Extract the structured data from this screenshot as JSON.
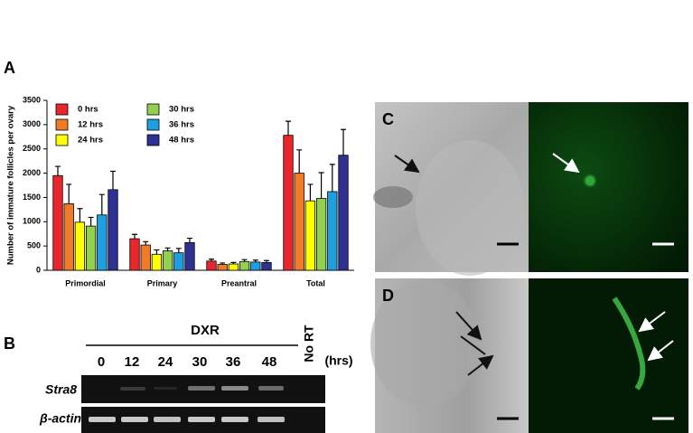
{
  "chart_data": {
    "type": "bar",
    "y_label": "Number of immature follicles per ovary",
    "categories": [
      "Primordial",
      "Primary",
      "Preantral",
      "Total"
    ],
    "series": [
      {
        "name": "0 hrs",
        "color": "#e8262b",
        "values": [
          1950,
          650,
          190,
          2780
        ],
        "errors": [
          190,
          90,
          40,
          290
        ]
      },
      {
        "name": "12 hrs",
        "color": "#f07a28",
        "values": [
          1370,
          520,
          120,
          2000
        ],
        "errors": [
          400,
          70,
          30,
          480
        ]
      },
      {
        "name": "24 hrs",
        "color": "#ffff00",
        "values": [
          990,
          330,
          130,
          1430
        ],
        "errors": [
          280,
          90,
          30,
          340
        ]
      },
      {
        "name": "30 hrs",
        "color": "#92d050",
        "values": [
          910,
          400,
          180,
          1480
        ],
        "errors": [
          180,
          60,
          40,
          530
        ]
      },
      {
        "name": "36 hrs",
        "color": "#1ea0e0",
        "values": [
          1140,
          360,
          170,
          1620
        ],
        "errors": [
          420,
          90,
          40,
          560
        ]
      },
      {
        "name": "48 hrs",
        "color": "#2e3192",
        "values": [
          1660,
          570,
          160,
          2370
        ],
        "errors": [
          380,
          90,
          40,
          530
        ]
      }
    ],
    "ylim": [
      0,
      3500
    ],
    "yticks": [
      0,
      500,
      1000,
      1500,
      2000,
      2500,
      3000,
      3500
    ],
    "legend": "upper left"
  },
  "panels": {
    "a": "A",
    "b": "B",
    "c": "C",
    "d": "D"
  },
  "gel": {
    "treatment": "DXR",
    "lanes": [
      "0",
      "12",
      "24",
      "30",
      "36",
      "48"
    ],
    "control": "No RT",
    "unit": "(hrs)",
    "rows": [
      "Stra8",
      "β-actin"
    ]
  }
}
